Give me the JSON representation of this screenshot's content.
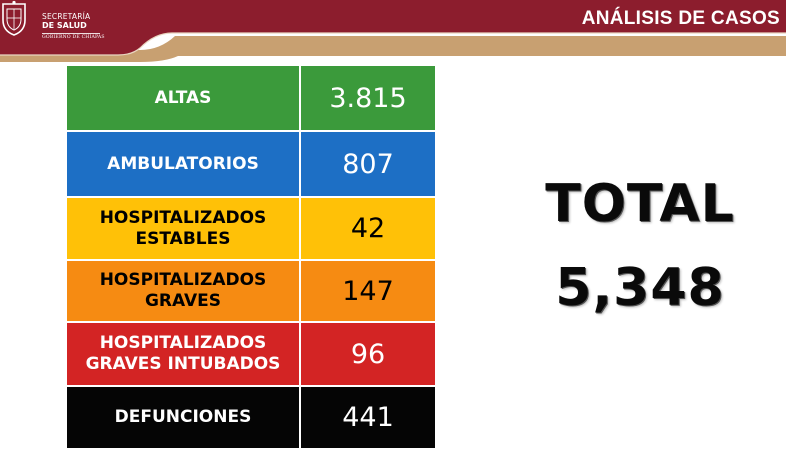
{
  "header": {
    "brand_line1": "SECRETARÍA",
    "brand_line2": "DE SALUD",
    "brand_line3": "GOBIERNO DE CHIAPAS",
    "section_title": "ANÁLISIS DE CASOS",
    "colors": {
      "maroon": "#8c1d2d",
      "gold": "#c8a071"
    },
    "logo_icon": "coat-of-arms-icon"
  },
  "table": {
    "rows": [
      {
        "label": "ALTAS",
        "value": "3.815",
        "color": "#3b9a3b"
      },
      {
        "label": "AMBULATORIOS",
        "value": "807",
        "color": "#1d6fc5"
      },
      {
        "label": "HOSPITALIZADOS\nESTABLES",
        "value": "42",
        "color": "#ffc107"
      },
      {
        "label": "HOSPITALIZADOS\nGRAVES",
        "value": "147",
        "color": "#f68b12"
      },
      {
        "label": "HOSPITALIZADOS\nGRAVES INTUBADOS",
        "value": "96",
        "color": "#d32424"
      },
      {
        "label": "DEFUNCIONES",
        "value": "441",
        "color": "#050505"
      }
    ]
  },
  "total": {
    "label": "TOTAL",
    "value": "5,348"
  }
}
